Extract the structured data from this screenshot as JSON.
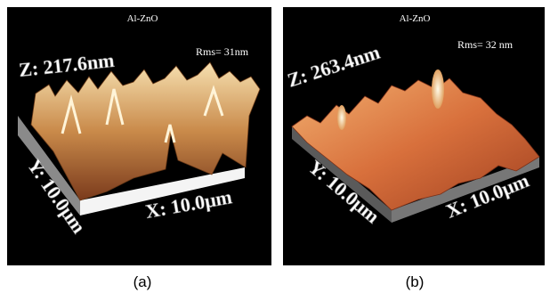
{
  "panels": [
    {
      "title": "Al-ZnO",
      "rms": "Rms= 31nm",
      "z_label": "Z: 217.6nm",
      "y_label": "Y: 10.0μm",
      "x_label": "X: 10.0μm",
      "caption": "(a)"
    },
    {
      "title": "Al-ZnO",
      "rms": "Rms= 32 nm",
      "z_label": "Z: 263.4nm",
      "y_label": "Y: 10.0μm",
      "x_label": "X: 10.0μm",
      "caption": "(b)"
    }
  ]
}
